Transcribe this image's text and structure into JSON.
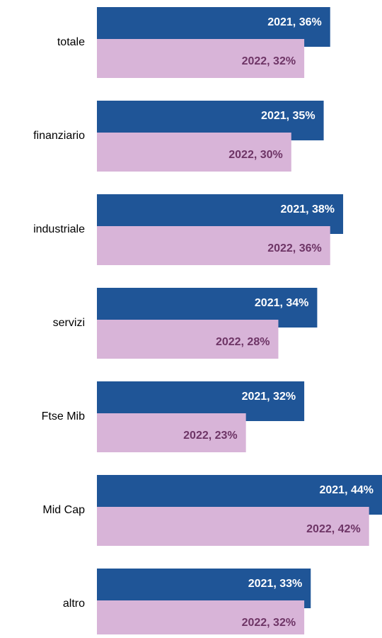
{
  "chart_data": {
    "type": "bar",
    "orientation": "horizontal",
    "categories": [
      "totale",
      "finanziario",
      "industriale",
      "servizi",
      "Ftse Mib",
      "Mid Cap",
      "altro"
    ],
    "series": [
      {
        "name": "2021",
        "color": "#1f5597",
        "label_color": "#ffffff",
        "values": [
          36,
          35,
          38,
          34,
          32,
          44,
          33
        ],
        "value_labels": [
          "2021, 36%",
          "2021, 35%",
          "2021, 38%",
          "2021, 34%",
          "2021, 32%",
          "2021, 44%",
          "2021, 33%"
        ]
      },
      {
        "name": "2022",
        "color": "#d8b4d8",
        "label_color": "#6e3566",
        "values": [
          32,
          30,
          36,
          28,
          23,
          42,
          32
        ],
        "value_labels": [
          "2022, 32%",
          "2022, 30%",
          "2022, 36%",
          "2022, 28%",
          "2022, 23%",
          "2022, 42%",
          "2022, 32%"
        ]
      }
    ],
    "xlim": [
      0,
      44
    ]
  }
}
